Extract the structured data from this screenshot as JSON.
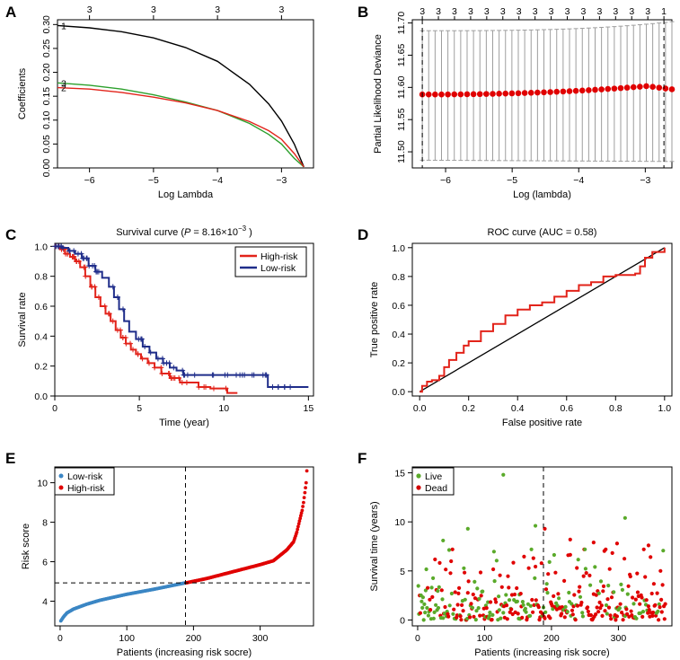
{
  "panels": {
    "A": {
      "label": "A"
    },
    "B": {
      "label": "B"
    },
    "C": {
      "label": "C"
    },
    "D": {
      "label": "D"
    },
    "E": {
      "label": "E"
    },
    "F": {
      "label": "F"
    }
  },
  "colors": {
    "black": "#000000",
    "red": "#e2231a",
    "green": "#2ca02c",
    "navy": "#1f2d8a",
    "blue": "#3b86c4",
    "grey": "#9e9e9e",
    "dotred": "#e00000",
    "dotgreen": "#5aaa2a",
    "legred": "#d10000"
  },
  "chart_data": [
    {
      "id": "A",
      "type": "line",
      "xlabel": "Log Lambda",
      "ylabel": "Coefficients",
      "xlim": [
        -6.5,
        -2.5
      ],
      "ylim": [
        0,
        0.31
      ],
      "xticks": [
        -6,
        -5,
        -4,
        -3
      ],
      "xtick_labels": [
        "−6",
        "−5",
        "−4",
        "−3"
      ],
      "yticks": [
        0,
        0.05,
        0.1,
        0.15,
        0.2,
        0.25,
        0.3
      ],
      "ytick_labels": [
        "0.00",
        "0.05",
        "0.10",
        "0.15",
        "0.20",
        "0.25",
        "0.30"
      ],
      "top_ticks": [
        -6,
        -5,
        -4,
        -3
      ],
      "top_tick_labels": [
        "3",
        "3",
        "3",
        "3"
      ],
      "series": [
        {
          "name": "1",
          "color": "black",
          "x": [
            -6.5,
            -6,
            -5.5,
            -5,
            -4.5,
            -4,
            -3.5,
            -3.2,
            -3,
            -2.8,
            -2.65
          ],
          "y": [
            0.298,
            0.293,
            0.285,
            0.272,
            0.252,
            0.223,
            0.175,
            0.134,
            0.098,
            0.05,
            0.002
          ]
        },
        {
          "name": "3",
          "color": "green",
          "x": [
            -6.5,
            -6,
            -5.5,
            -5,
            -4.5,
            -4,
            -3.5,
            -3.2,
            -3,
            -2.8,
            -2.65
          ],
          "y": [
            0.178,
            0.173,
            0.165,
            0.153,
            0.138,
            0.12,
            0.093,
            0.07,
            0.05,
            0.02,
            0.002
          ]
        },
        {
          "name": "2",
          "color": "red",
          "x": [
            -6.5,
            -6,
            -5.5,
            -5,
            -4.5,
            -4,
            -3.5,
            -3.2,
            -3,
            -2.8,
            -2.65
          ],
          "y": [
            0.168,
            0.165,
            0.158,
            0.148,
            0.136,
            0.12,
            0.097,
            0.078,
            0.06,
            0.03,
            0.002
          ]
        }
      ]
    },
    {
      "id": "B",
      "type": "scatter",
      "xlabel": "Log (lambda)",
      "ylabel": "Partial Likelihood Deviance",
      "xlim": [
        -6.5,
        -2.6
      ],
      "ylim": [
        11.475,
        11.705
      ],
      "xticks": [
        -6,
        -5,
        -4,
        -3
      ],
      "xtick_labels": [
        "−6",
        "−5",
        "−4",
        "−3"
      ],
      "yticks": [
        11.5,
        11.55,
        11.6,
        11.65,
        11.7
      ],
      "ytick_labels": [
        "11.50",
        "11.55",
        "11.60",
        "11.65",
        "11.70"
      ],
      "top_labels": [
        "3",
        "3",
        "3",
        "3",
        "3",
        "3",
        "3",
        "3",
        "3",
        "3",
        "3",
        "3",
        "3",
        "3",
        "3",
        "1"
      ],
      "lambda_min": -6.35,
      "lambda_1se": -2.72,
      "points": {
        "x_start": -6.35,
        "x_end": -2.6,
        "count": 40,
        "y_start": 11.589,
        "y_peak": 11.602,
        "y_end": 11.597
      },
      "error_bar": {
        "upper_start": 11.688,
        "upper_end": 11.702,
        "lower_start": 11.487,
        "lower_end": 11.485
      }
    },
    {
      "id": "C",
      "type": "line",
      "title": "Survival curve (",
      "title_p": "P",
      "title_eq": " = 8.16×10",
      "title_exp": "−3",
      "title_close": " )",
      "xlabel": "Time (year)",
      "ylabel": "Survival rate",
      "xlim": [
        0,
        15.3
      ],
      "ylim": [
        0,
        1.02
      ],
      "xticks": [
        0,
        5,
        10,
        15
      ],
      "xtick_labels": [
        "0",
        "5",
        "10",
        "15"
      ],
      "yticks": [
        0,
        0.2,
        0.4,
        0.6,
        0.8,
        1.0
      ],
      "ytick_labels": [
        "0.0",
        "0.2",
        "0.4",
        "0.6",
        "0.8",
        "1.0"
      ],
      "legend": [
        "High-risk",
        "Low-risk"
      ],
      "series": [
        {
          "name": "High-risk",
          "color": "red",
          "x": [
            0,
            0.3,
            0.6,
            0.9,
            1.2,
            1.5,
            1.8,
            2.1,
            2.4,
            2.7,
            3.0,
            3.3,
            3.6,
            3.9,
            4.2,
            4.5,
            4.8,
            5.1,
            5.5,
            5.9,
            6.3,
            6.8,
            7.4,
            8.0,
            8.5,
            9.2,
            10.2,
            10.8
          ],
          "y": [
            1.0,
            0.98,
            0.95,
            0.93,
            0.9,
            0.86,
            0.8,
            0.73,
            0.66,
            0.6,
            0.55,
            0.5,
            0.44,
            0.39,
            0.35,
            0.31,
            0.28,
            0.25,
            0.22,
            0.19,
            0.15,
            0.12,
            0.09,
            0.09,
            0.06,
            0.05,
            0.02,
            0.02
          ]
        },
        {
          "name": "Low-risk",
          "color": "navy",
          "x": [
            0,
            0.4,
            0.8,
            1.2,
            1.6,
            2.0,
            2.4,
            2.8,
            3.2,
            3.5,
            3.8,
            4.1,
            4.4,
            4.8,
            5.2,
            5.6,
            6.0,
            6.4,
            6.8,
            7.2,
            7.6,
            8.5,
            10,
            12.6,
            12.6,
            15
          ],
          "y": [
            1.0,
            0.99,
            0.97,
            0.95,
            0.92,
            0.87,
            0.83,
            0.79,
            0.73,
            0.66,
            0.58,
            0.5,
            0.43,
            0.38,
            0.33,
            0.29,
            0.25,
            0.22,
            0.19,
            0.17,
            0.14,
            0.14,
            0.14,
            0.14,
            0.06,
            0.06
          ]
        }
      ]
    },
    {
      "id": "D",
      "type": "line",
      "title": "ROC curve (AUC = 0.58)",
      "xlabel": "False positive rate",
      "ylabel": "True positive rate",
      "xlim": [
        -0.03,
        1.03
      ],
      "ylim": [
        -0.03,
        1.03
      ],
      "xticks": [
        0,
        0.2,
        0.4,
        0.6,
        0.8,
        1.0
      ],
      "xtick_labels": [
        "0.0",
        "0.2",
        "0.4",
        "0.6",
        "0.8",
        "1.0"
      ],
      "yticks": [
        0,
        0.2,
        0.4,
        0.6,
        0.8,
        1.0
      ],
      "ytick_labels": [
        "0.0",
        "0.2",
        "0.4",
        "0.6",
        "0.8",
        "1.0"
      ],
      "diagonal": [
        [
          0,
          0
        ],
        [
          1,
          1
        ]
      ],
      "series": [
        {
          "name": "ROC",
          "color": "red",
          "x": [
            0,
            0.01,
            0.03,
            0.05,
            0.08,
            0.1,
            0.12,
            0.15,
            0.18,
            0.2,
            0.25,
            0.3,
            0.35,
            0.4,
            0.45,
            0.5,
            0.55,
            0.6,
            0.65,
            0.7,
            0.75,
            0.8,
            0.85,
            0.88,
            0.9,
            0.92,
            0.95,
            1.0
          ],
          "y": [
            0,
            0.04,
            0.07,
            0.08,
            0.11,
            0.17,
            0.22,
            0.27,
            0.32,
            0.35,
            0.42,
            0.47,
            0.53,
            0.57,
            0.6,
            0.62,
            0.66,
            0.7,
            0.74,
            0.76,
            0.8,
            0.81,
            0.81,
            0.82,
            0.87,
            0.93,
            0.97,
            1.0
          ]
        }
      ]
    },
    {
      "id": "E",
      "type": "scatter",
      "xlabel": "Patients (increasing risk socre)",
      "ylabel": "Risk score",
      "xlim": [
        -8,
        380
      ],
      "ylim": [
        2.75,
        10.8
      ],
      "xticks": [
        0,
        100,
        200,
        300
      ],
      "xtick_labels": [
        "0",
        "100",
        "200",
        "300"
      ],
      "yticks": [
        4,
        6,
        8,
        10
      ],
      "ytick_labels": [
        "4",
        "6",
        "8",
        "10"
      ],
      "legend": [
        "Low-risk",
        "High-risk"
      ],
      "cutoff_x": 188,
      "cutoff_y": 4.93,
      "n": 370,
      "low_curve": {
        "x": [
          1,
          5,
          10,
          20,
          40,
          60,
          100,
          140,
          188
        ],
        "y": [
          3.0,
          3.2,
          3.4,
          3.6,
          3.85,
          4.05,
          4.35,
          4.6,
          4.93
        ]
      },
      "high_curve": {
        "x": [
          189,
          220,
          260,
          300,
          320,
          340,
          350,
          355,
          360,
          363,
          365,
          367,
          369,
          370
        ],
        "y": [
          4.93,
          5.15,
          5.5,
          5.85,
          6.05,
          6.6,
          7.0,
          7.5,
          8.2,
          8.6,
          9.0,
          9.5,
          10.0,
          10.6
        ]
      }
    },
    {
      "id": "F",
      "type": "scatter",
      "xlabel": "Patients (increasing risk socre)",
      "ylabel": "Survival time (years)",
      "xlim": [
        -8,
        380
      ],
      "ylim": [
        -0.6,
        15.6
      ],
      "xticks": [
        0,
        100,
        200,
        300
      ],
      "xtick_labels": [
        "0",
        "100",
        "200",
        "300"
      ],
      "yticks": [
        0,
        5,
        10,
        15
      ],
      "ytick_labels": [
        "0",
        "5",
        "10",
        "15"
      ],
      "legend": [
        "Live",
        "Dead"
      ],
      "cutoff_x": 188,
      "n": 370,
      "highlights": [
        {
          "x": 128,
          "y": 14.8,
          "status": "Live"
        },
        {
          "x": 176,
          "y": 9.6,
          "status": "Live"
        },
        {
          "x": 310,
          "y": 10.4,
          "status": "Live"
        },
        {
          "x": 75,
          "y": 9.3,
          "status": "Live"
        },
        {
          "x": 38,
          "y": 8.1,
          "status": "Live"
        },
        {
          "x": 228,
          "y": 8.2,
          "status": "Dead"
        },
        {
          "x": 263,
          "y": 7.9,
          "status": "Dead"
        },
        {
          "x": 298,
          "y": 7.8,
          "status": "Dead"
        },
        {
          "x": 190,
          "y": 9.3,
          "status": "Dead"
        },
        {
          "x": 345,
          "y": 7.6,
          "status": "Dead"
        }
      ]
    }
  ]
}
